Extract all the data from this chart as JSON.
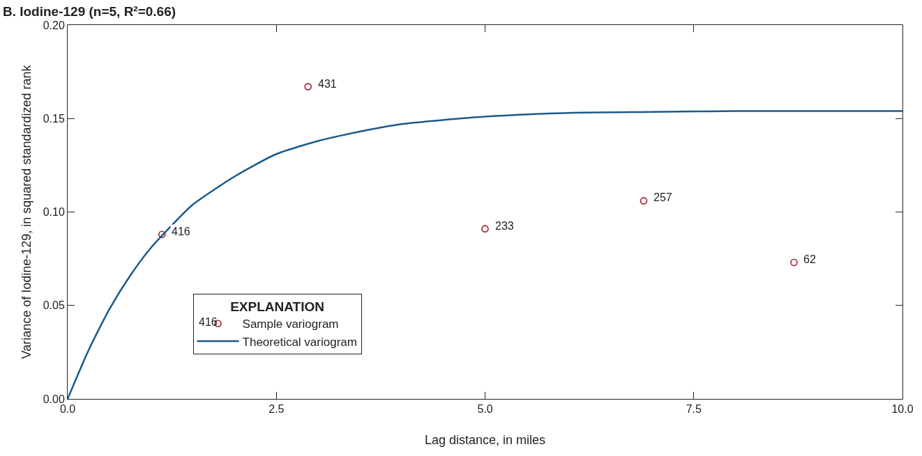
{
  "chart_data": {
    "type": "scatter",
    "title": "B. Iodine-129 (n=5, R²=0.66)",
    "xlabel": "Lag distance, in miles",
    "ylabel": "Variance of Iodine-129, in squared standardized rank",
    "legend_title": "EXPLANATION",
    "legend": "bottom left",
    "grid": false,
    "marker": "circle",
    "xlim": [
      0,
      10
    ],
    "ylim": [
      0,
      0.2
    ],
    "xticks": [
      {
        "value": 0,
        "label": "0.0"
      },
      2.5,
      {
        "value": 5,
        "label": "5.0"
      },
      7.5,
      {
        "value": 10,
        "label": "10.0"
      }
    ],
    "yticks": [
      {
        "value": 0,
        "label": "0.00"
      },
      0.05,
      {
        "value": 0.1,
        "label": "0.10"
      },
      0.15,
      {
        "value": 0.2,
        "label": "0.20"
      }
    ],
    "series": [
      {
        "name": "Sample variogram",
        "color": "#a6192e",
        "x": [
          1.13,
          2.88,
          5.0,
          6.9,
          8.7
        ],
        "values": [
          0.088,
          0.167,
          0.091,
          0.106,
          0.073
        ]
      },
      {
        "name": "Theoretical variogram",
        "type": "line",
        "color": "#1a5a8a",
        "marker": "none",
        "line_style": "solid",
        "x": [
          0,
          0.25,
          0.5,
          0.75,
          1,
          1.25,
          1.5,
          2,
          2.5,
          3,
          3.5,
          4,
          5,
          6,
          7,
          8,
          10
        ],
        "values": [
          0,
          0.026,
          0.048,
          0.066,
          0.081,
          0.093,
          0.104,
          0.119,
          0.131,
          0.138,
          0.143,
          0.147,
          0.151,
          0.153,
          0.1535,
          0.154,
          0.154
        ]
      }
    ],
    "annotations": [
      {
        "text": "416",
        "x": 1.13,
        "y": 0.088
      },
      {
        "text": "431",
        "x": 2.88,
        "y": 0.167
      },
      {
        "text": "233",
        "x": 5.0,
        "y": 0.091
      },
      {
        "text": "257",
        "x": 6.9,
        "y": 0.106
      },
      {
        "text": "62",
        "x": 8.7,
        "y": 0.073
      },
      "416"
    ]
  }
}
